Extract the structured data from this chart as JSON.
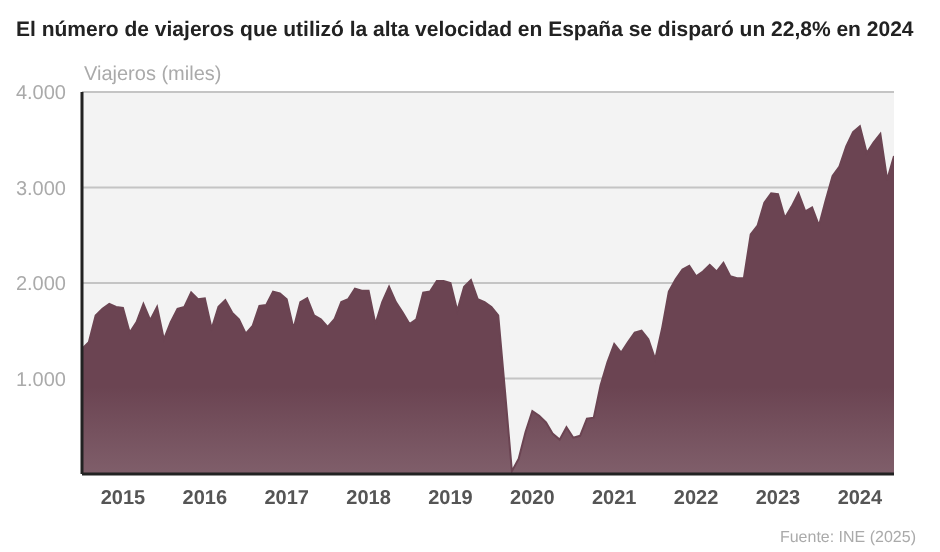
{
  "chart_data": {
    "type": "area",
    "title": "El número de viajeros que utilizó la alta velocidad en España se disparó un 22,8% en 2024",
    "ylabel": "Viajeros (miles)",
    "annotations": [
      "Fuente: INE (2025)"
    ],
    "x": [
      "2015-01",
      "2015-02",
      "2015-03",
      "2015-04",
      "2015-05",
      "2015-06",
      "2015-07",
      "2015-08",
      "2015-09",
      "2015-10",
      "2015-11",
      "2015-12",
      "2016-01",
      "2016-02",
      "2016-03",
      "2016-04",
      "2016-05",
      "2016-06",
      "2016-07",
      "2016-08",
      "2016-09",
      "2016-10",
      "2016-11",
      "2016-12",
      "2017-01",
      "2017-02",
      "2017-03",
      "2017-04",
      "2017-05",
      "2017-06",
      "2017-07",
      "2017-08",
      "2017-09",
      "2017-10",
      "2017-11",
      "2017-12",
      "2018-01",
      "2018-02",
      "2018-03",
      "2018-04",
      "2018-05",
      "2018-06",
      "2018-07",
      "2018-08",
      "2018-09",
      "2018-10",
      "2018-11",
      "2018-12",
      "2019-01",
      "2019-02",
      "2019-03",
      "2019-04",
      "2019-05",
      "2019-06",
      "2019-07",
      "2019-08",
      "2019-09",
      "2019-10",
      "2019-11",
      "2019-12",
      "2020-01",
      "2020-02",
      "2020-03",
      "2020-04",
      "2020-05",
      "2020-06",
      "2020-07",
      "2020-08",
      "2020-09",
      "2020-10",
      "2020-11",
      "2020-12",
      "2021-01",
      "2021-02",
      "2021-03",
      "2021-04",
      "2021-05",
      "2021-06",
      "2021-07",
      "2021-08",
      "2021-09",
      "2021-10",
      "2021-11",
      "2021-12",
      "2022-01",
      "2022-02",
      "2022-03",
      "2022-04",
      "2022-05",
      "2022-06",
      "2022-07",
      "2022-08",
      "2022-09",
      "2022-10",
      "2022-11",
      "2022-12",
      "2023-01",
      "2023-02",
      "2023-03",
      "2023-04",
      "2023-05",
      "2023-06",
      "2023-07",
      "2023-08",
      "2023-09",
      "2023-10",
      "2023-11",
      "2023-12",
      "2024-01",
      "2024-02",
      "2024-03",
      "2024-04",
      "2024-05",
      "2024-06",
      "2024-07",
      "2024-08",
      "2024-09",
      "2024-10",
      "2024-11",
      "2024-12"
    ],
    "series": [
      {
        "color": "#6b4452",
        "values": [
          1310,
          1380,
          1660,
          1730,
          1780,
          1750,
          1740,
          1480,
          1590,
          1780,
          1610,
          1750,
          1410,
          1590,
          1730,
          1750,
          1900,
          1830,
          1840,
          1520,
          1750,
          1820,
          1690,
          1620,
          1470,
          1550,
          1760,
          1770,
          1910,
          1890,
          1830,
          1520,
          1800,
          1840,
          1660,
          1620,
          1540,
          1620,
          1800,
          1830,
          1940,
          1920,
          1920,
          1570,
          1800,
          1960,
          1800,
          1690,
          1570,
          1620,
          1900,
          1910,
          2020,
          2020,
          2000,
          1710,
          1960,
          2030,
          1830,
          1800,
          1750,
          1660,
          860,
          30,
          160,
          440,
          660,
          610,
          540,
          420,
          360,
          490,
          380,
          400,
          580,
          590,
          930,
          1170,
          1360,
          1270,
          1380,
          1480,
          1500,
          1410,
          1200,
          1520,
          1910,
          2040,
          2140,
          2180,
          2070,
          2120,
          2190,
          2120,
          2210,
          2070,
          2050,
          2050,
          2510,
          2600,
          2840,
          2940,
          2930,
          2680,
          2800,
          2940,
          2750,
          2790,
          2600,
          2870,
          3120,
          3220,
          3430,
          3580,
          3640,
          3360,
          3470,
          3560,
          3080,
          3330
        ]
      }
    ],
    "xlim": [
      "2015-01",
      "2024-12"
    ],
    "xticks": [
      {
        "value": "2015-07",
        "label": "2015"
      },
      {
        "value": "2016-07",
        "label": "2016"
      },
      {
        "value": "2017-07",
        "label": "2017"
      },
      {
        "value": "2018-07",
        "label": "2018"
      },
      {
        "value": "2019-07",
        "label": "2019"
      },
      {
        "value": "2020-07",
        "label": "2020"
      },
      {
        "value": "2021-07",
        "label": "2021"
      },
      {
        "value": "2022-07",
        "label": "2022"
      },
      {
        "value": "2023-07",
        "label": "2023"
      },
      {
        "value": "2024-07",
        "label": "2024"
      }
    ],
    "ylim": [
      0,
      4000
    ],
    "yticks": [
      {
        "value": 1000,
        "label": "1.000"
      },
      {
        "value": 2000,
        "label": "2.000"
      },
      {
        "value": 3000,
        "label": "3.000"
      },
      {
        "value": 4000,
        "label": "4.000"
      }
    ],
    "grid": "y",
    "legend": false
  }
}
